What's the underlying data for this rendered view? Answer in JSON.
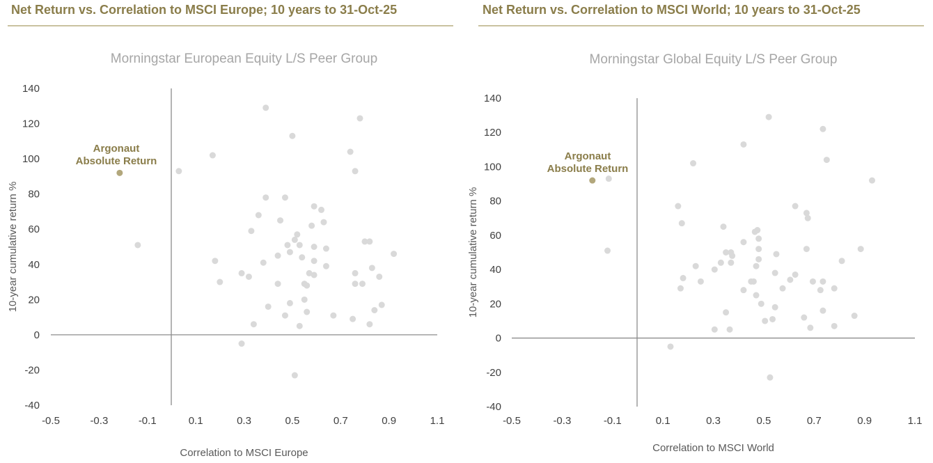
{
  "accent_color": "#8a7d4a",
  "peer_color": "#d9d9d9",
  "highlight_color": "#b2a77c",
  "axis_color": "#8c8c8c",
  "chart_data": [
    {
      "type": "scatter",
      "header": "Net Return vs. Correlation to MSCI Europe; 10 years to 31-Oct-25",
      "title": "Morningstar European Equity L/S Peer Group",
      "xlabel": "Correlation to MSCI Europe",
      "ylabel": "10-year cumulative return %",
      "xlim": [
        -0.5,
        1.1
      ],
      "ylim": [
        -40,
        140
      ],
      "xticks": [
        "-0.5",
        "-0.3",
        "-0.1",
        "0.1",
        "0.3",
        "0.5",
        "0.7",
        "0.9",
        "1.1"
      ],
      "yticks": [
        "140",
        "120",
        "100",
        "80",
        "60",
        "40",
        "20",
        "0",
        "-20",
        "-40"
      ],
      "grid": false,
      "highlight": {
        "label_line1": "Argonaut",
        "label_line2": "Absolute Return",
        "x": -0.215,
        "y": 92
      },
      "points": [
        [
          0.03,
          93
        ],
        [
          -0.14,
          51
        ],
        [
          0.17,
          102
        ],
        [
          0.18,
          42
        ],
        [
          0.2,
          30
        ],
        [
          0.29,
          -5
        ],
        [
          0.29,
          35
        ],
        [
          0.32,
          33
        ],
        [
          0.33,
          59
        ],
        [
          0.34,
          6
        ],
        [
          0.36,
          68
        ],
        [
          0.38,
          41
        ],
        [
          0.39,
          78
        ],
        [
          0.4,
          16
        ],
        [
          0.39,
          129
        ],
        [
          0.44,
          29
        ],
        [
          0.44,
          45
        ],
        [
          0.45,
          65
        ],
        [
          0.47,
          78
        ],
        [
          0.47,
          11
        ],
        [
          0.48,
          51
        ],
        [
          0.49,
          47
        ],
        [
          0.49,
          18
        ],
        [
          0.5,
          113
        ],
        [
          0.51,
          -23
        ],
        [
          0.51,
          54
        ],
        [
          0.52,
          57
        ],
        [
          0.53,
          51
        ],
        [
          0.53,
          5
        ],
        [
          0.54,
          44
        ],
        [
          0.55,
          29
        ],
        [
          0.55,
          20
        ],
        [
          0.56,
          28
        ],
        [
          0.56,
          13
        ],
        [
          0.57,
          35
        ],
        [
          0.58,
          62
        ],
        [
          0.59,
          73
        ],
        [
          0.59,
          34
        ],
        [
          0.59,
          50
        ],
        [
          0.59,
          42
        ],
        [
          0.62,
          71
        ],
        [
          0.63,
          64
        ],
        [
          0.64,
          49
        ],
        [
          0.64,
          39
        ],
        [
          0.67,
          11
        ],
        [
          0.74,
          104
        ],
        [
          0.75,
          9
        ],
        [
          0.76,
          93
        ],
        [
          0.76,
          35
        ],
        [
          0.76,
          29
        ],
        [
          0.78,
          123
        ],
        [
          0.79,
          29
        ],
        [
          0.8,
          53
        ],
        [
          0.82,
          6
        ],
        [
          0.82,
          53
        ],
        [
          0.83,
          38
        ],
        [
          0.84,
          14
        ],
        [
          0.86,
          33
        ],
        [
          0.87,
          17
        ],
        [
          0.92,
          46
        ]
      ]
    },
    {
      "type": "scatter",
      "header": "Net Return vs. Correlation to MSCI World; 10 years to 31-Oct-25",
      "title": "Morningstar Global Equity L/S Peer Group",
      "xlabel": "Correlation to MSCI World",
      "ylabel": "10-year cumulative return %",
      "xlim": [
        -0.5,
        1.1
      ],
      "ylim": [
        -40,
        140
      ],
      "xticks": [
        "-0.5",
        "-0.3",
        "-0.1",
        "0.1",
        "0.3",
        "0.5",
        "0.7",
        "0.9",
        "1.1"
      ],
      "yticks": [
        "140",
        "120",
        "100",
        "80",
        "60",
        "40",
        "20",
        "0",
        "-20",
        "-40"
      ],
      "grid": false,
      "highlight": {
        "label_line1": "Argonaut",
        "label_line2": "Absolute Return",
        "x": -0.18,
        "y": 92
      },
      "points": [
        [
          -0.115,
          93
        ],
        [
          -0.12,
          51
        ],
        [
          0.13,
          -5
        ],
        [
          0.16,
          77
        ],
        [
          0.17,
          29
        ],
        [
          0.175,
          67
        ],
        [
          0.18,
          35
        ],
        [
          0.22,
          102
        ],
        [
          0.23,
          42
        ],
        [
          0.25,
          33
        ],
        [
          0.305,
          5
        ],
        [
          0.305,
          40
        ],
        [
          0.33,
          44
        ],
        [
          0.34,
          65
        ],
        [
          0.35,
          15
        ],
        [
          0.35,
          50
        ],
        [
          0.365,
          5
        ],
        [
          0.37,
          44
        ],
        [
          0.37,
          50
        ],
        [
          0.375,
          48
        ],
        [
          0.42,
          56
        ],
        [
          0.42,
          28
        ],
        [
          0.42,
          113
        ],
        [
          0.45,
          33
        ],
        [
          0.46,
          33
        ],
        [
          0.465,
          62
        ],
        [
          0.47,
          25
        ],
        [
          0.47,
          42
        ],
        [
          0.475,
          63
        ],
        [
          0.48,
          58
        ],
        [
          0.48,
          52
        ],
        [
          0.48,
          46
        ],
        [
          0.49,
          20
        ],
        [
          0.505,
          10
        ],
        [
          0.52,
          129
        ],
        [
          0.525,
          -23
        ],
        [
          0.535,
          11
        ],
        [
          0.545,
          18
        ],
        [
          0.545,
          38
        ],
        [
          0.55,
          49
        ],
        [
          0.575,
          29
        ],
        [
          0.605,
          34
        ],
        [
          0.625,
          77
        ],
        [
          0.625,
          37
        ],
        [
          0.66,
          12
        ],
        [
          0.67,
          52
        ],
        [
          0.67,
          73
        ],
        [
          0.675,
          70
        ],
        [
          0.685,
          6
        ],
        [
          0.695,
          33
        ],
        [
          0.725,
          28
        ],
        [
          0.735,
          122
        ],
        [
          0.735,
          16
        ],
        [
          0.735,
          33
        ],
        [
          0.75,
          104
        ],
        [
          0.78,
          29
        ],
        [
          0.78,
          7
        ],
        [
          0.81,
          45
        ],
        [
          0.86,
          13
        ],
        [
          0.885,
          52
        ],
        [
          0.93,
          92
        ]
      ]
    }
  ]
}
